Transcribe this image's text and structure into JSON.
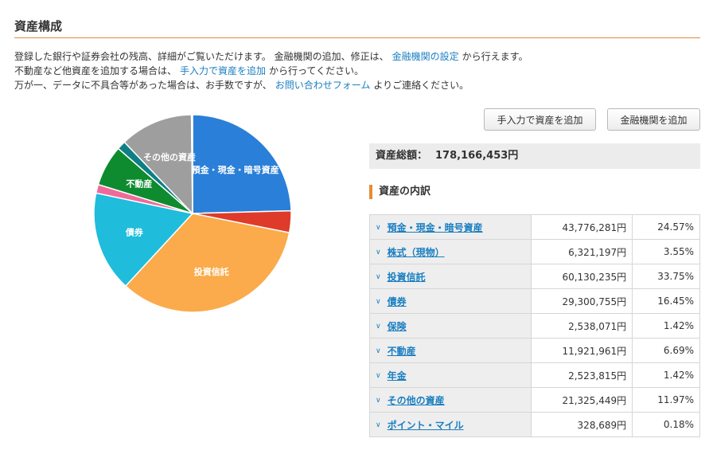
{
  "section_title": "資産構成",
  "intro": {
    "line1_pre": "登録した銀行や証券会社の残高、詳細がご覧いただけます。 金融機関の追加、修正は、",
    "line1_link": "金融機関の設定",
    "line1_post": "から行えます。",
    "line2_pre": "不動産など他資産を追加する場合は、",
    "line2_link": "手入力で資産を追加",
    "line2_post": "から行ってください。",
    "line3_pre": "万が一、データに不具合等があった場合は、お手数ですが、",
    "line3_link": "お問い合わせフォーム",
    "line3_post": "よりご連絡ください。"
  },
  "buttons": {
    "add_manual": "手入力で資産を追加",
    "add_institution": "金融機関を追加"
  },
  "total": {
    "label": "資産総額：",
    "value": "178,166,453円"
  },
  "breakdown_title": "資産の内訳",
  "chart_data": {
    "type": "pie",
    "slices": [
      {
        "label": "預金・現金・暗号資産",
        "value": 24.57,
        "color": "#2a7fd8",
        "show_label": true
      },
      {
        "label": "株式（現物）",
        "value": 3.55,
        "color": "#df3b2a",
        "show_label": false
      },
      {
        "label": "投資信託",
        "value": 33.75,
        "color": "#fbab4b",
        "show_label": true
      },
      {
        "label": "債券",
        "value": 16.45,
        "color": "#1fbcdc",
        "show_label": true
      },
      {
        "label": "保険",
        "value": 1.42,
        "color": "#ef6a9a",
        "show_label": false
      },
      {
        "label": "不動産",
        "value": 6.69,
        "color": "#0f8b2f",
        "show_label": true
      },
      {
        "label": "年金",
        "value": 1.42,
        "color": "#0f7f86",
        "show_label": false
      },
      {
        "label": "その他の資産",
        "value": 11.97,
        "color": "#9e9e9e",
        "show_label": true
      },
      {
        "label": "ポイント・マイル",
        "value": 0.18,
        "color": "#8e5bd0",
        "show_label": false
      }
    ]
  },
  "rows": [
    {
      "category": "預金・現金・暗号資産",
      "amount": "43,776,281円",
      "percent": "24.57%"
    },
    {
      "category": "株式（現物）",
      "amount": "6,321,197円",
      "percent": "3.55%"
    },
    {
      "category": "投資信託",
      "amount": "60,130,235円",
      "percent": "33.75%"
    },
    {
      "category": "債券",
      "amount": "29,300,755円",
      "percent": "16.45%"
    },
    {
      "category": "保険",
      "amount": "2,538,071円",
      "percent": "1.42%"
    },
    {
      "category": "不動産",
      "amount": "11,921,961円",
      "percent": "6.69%"
    },
    {
      "category": "年金",
      "amount": "2,523,815円",
      "percent": "1.42%"
    },
    {
      "category": "その他の資産",
      "amount": "21,325,449円",
      "percent": "11.97%"
    },
    {
      "category": "ポイント・マイル",
      "amount": "328,689円",
      "percent": "0.18%"
    }
  ]
}
